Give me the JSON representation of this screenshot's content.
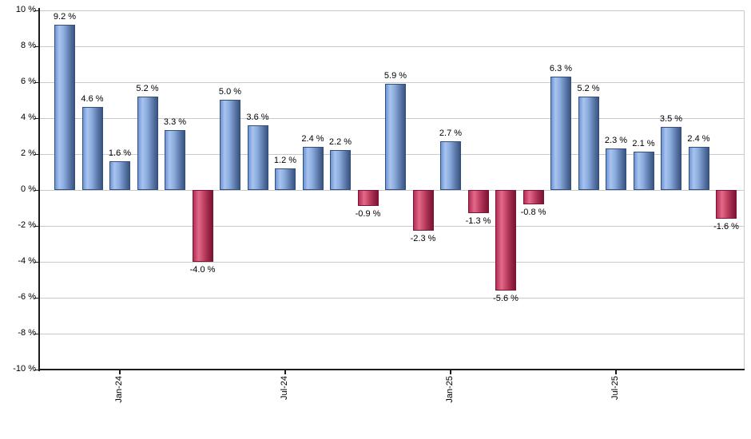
{
  "chart_data": {
    "type": "bar",
    "title": "",
    "xlabel": "",
    "ylabel": "",
    "ylim": [
      -10,
      10
    ],
    "y_step": 2,
    "grid": true,
    "legend": false,
    "y_tick_labels": [
      "10 %",
      "8 %",
      "6 %",
      "4 %",
      "2 %",
      "0 %",
      "-2 %",
      "-4 %",
      "-6 %",
      "-8 %",
      "-10 %"
    ],
    "x_ticks": [
      {
        "label": "Jan-24",
        "bar_index": 2
      },
      {
        "label": "Jul-24",
        "bar_index": 8
      },
      {
        "label": "Jan-25",
        "bar_index": 14
      },
      {
        "label": "Jul-25",
        "bar_index": 20
      }
    ],
    "values": [
      9.2,
      4.6,
      1.6,
      5.2,
      3.3,
      -4.0,
      5.0,
      3.6,
      1.2,
      2.4,
      2.2,
      -0.9,
      5.9,
      -2.3,
      2.7,
      -1.3,
      -5.6,
      -0.8,
      6.3,
      5.2,
      2.3,
      2.1,
      3.5,
      2.4,
      -1.6
    ],
    "bar_labels": [
      "9.2 %",
      "4.6 %",
      "1.6 %",
      "5.2 %",
      "3.3 %",
      "-4.0 %",
      "5.0 %",
      "3.6 %",
      "1.2 %",
      "2.4 %",
      "2.2 %",
      "-0.9 %",
      "5.9 %",
      "-2.3 %",
      "2.7 %",
      "-1.3 %",
      "-5.6 %",
      "-0.8 %",
      "6.3 %",
      "5.2 %",
      "2.3 %",
      "2.1 %",
      "3.5 %",
      "2.4 %",
      "-1.6 %"
    ],
    "colors": {
      "positive_edge": "#6d95d6",
      "positive_light": "#a9c3ee",
      "positive_mid": "#8badde",
      "positive_shade": "#5d7aab",
      "positive_dark": "#3a547f",
      "positive_border": "#31507f",
      "negative_edge": "#b52e55",
      "negative_light": "#e26a8a",
      "negative_mid": "#c74868",
      "negative_shade": "#a32c4f",
      "negative_dark": "#7c1434",
      "negative_border": "#7c1434",
      "gridline": "#c9c9c9",
      "axis": "#1b1b1b",
      "label_text": "#000000",
      "background": "#ffffff"
    }
  }
}
